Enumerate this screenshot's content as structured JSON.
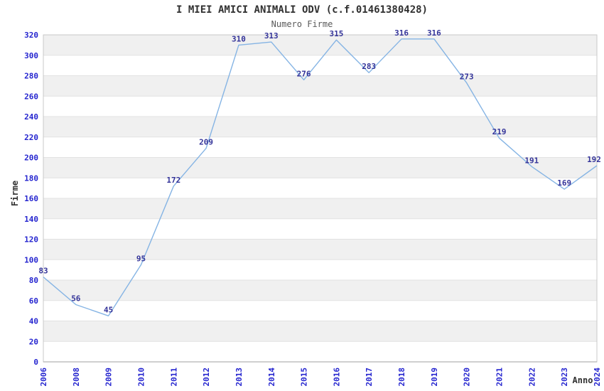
{
  "page": {
    "title": "I MIEI AMICI ANIMALI ODV (c.f.01461380428)",
    "subtitle": "Numero Firme"
  },
  "chart_data": {
    "type": "line",
    "title": "I MIEI AMICI ANIMALI ODV (c.f.01461380428)",
    "subtitle": "Numero Firme",
    "xlabel": "Anno",
    "ylabel": "Firme",
    "categories": [
      "2006",
      "2008",
      "2009",
      "2010",
      "2011",
      "2012",
      "2013",
      "2014",
      "2015",
      "2016",
      "2017",
      "2018",
      "2019",
      "2020",
      "2021",
      "2022",
      "2023",
      "2024"
    ],
    "values": [
      83,
      56,
      45,
      95,
      172,
      209,
      310,
      313,
      276,
      315,
      283,
      316,
      316,
      273,
      219,
      191,
      169,
      192
    ],
    "ylim": [
      0,
      320
    ],
    "ytick_step": 20,
    "grid": "horizontal-bands-alternating",
    "legend": "none",
    "data_labels": true,
    "colors": {
      "line": "#85b4e4",
      "tick_label": "#2424cf",
      "data_label": "#333399",
      "band_gray": "#f0f0f0",
      "band_white": "#ffffff",
      "gridline": "#e2e2e2",
      "border": "#c8c8c8",
      "bottom_axis": "#a0a0a0",
      "title": "#303030",
      "subtitle": "#5a5a5a",
      "axis_title": "#303030"
    }
  }
}
